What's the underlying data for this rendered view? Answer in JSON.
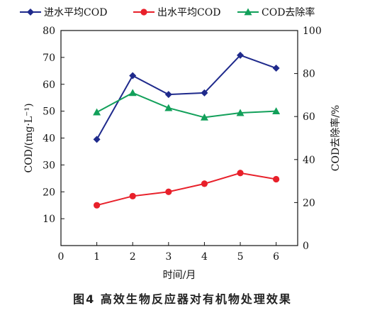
{
  "caption": "图4   高效生物反应器对有机物处理效果",
  "chart_data": {
    "type": "line",
    "x": [
      1,
      2,
      3,
      4,
      5,
      6
    ],
    "xlabel": "时间/月",
    "ylabel_left": "COD/(mg·L⁻¹)",
    "ylabel_right": "COD去除率/%",
    "xlim": [
      0,
      6.6
    ],
    "ylim_left": [
      0,
      80
    ],
    "ylim_right": [
      0,
      100
    ],
    "xticks": [
      "0",
      "1",
      "2",
      "3",
      "4",
      "5",
      "6"
    ],
    "yticks_left": [
      "0",
      "10",
      "20",
      "30",
      "40",
      "50",
      "60",
      "70",
      "80"
    ],
    "yticks_right": [
      "0",
      "20",
      "40",
      "60",
      "80",
      "100"
    ],
    "grid": false,
    "legend_position": "top",
    "series": [
      {
        "name": "进水平均COD",
        "axis": "left",
        "marker": "diamond",
        "color": "#1f2a8c",
        "values": [
          39.5,
          63.2,
          56.2,
          56.8,
          70.8,
          66.0
        ]
      },
      {
        "name": "出水平均COD",
        "axis": "left",
        "marker": "circle",
        "color": "#e8202a",
        "values": [
          15.0,
          18.4,
          20.0,
          23.0,
          27.0,
          24.7
        ]
      },
      {
        "name": "COD去除率",
        "axis": "right",
        "marker": "triangle",
        "color": "#12a05a",
        "values": [
          62.0,
          71.0,
          64.0,
          59.6,
          61.7,
          62.5
        ]
      }
    ]
  }
}
